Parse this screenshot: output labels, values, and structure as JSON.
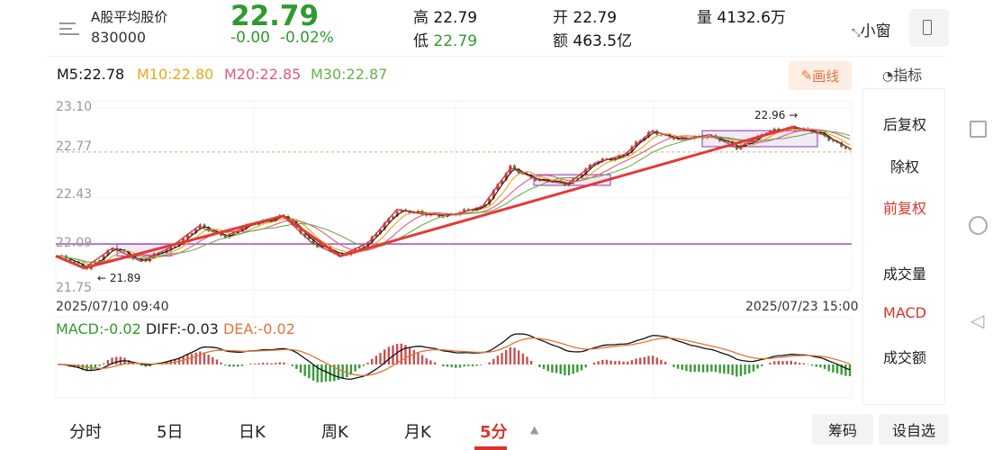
{
  "header": {
    "name": "A股平均股价",
    "code": "830000",
    "price": "22.79",
    "change": "-0.00",
    "change_pct": "-0.02%",
    "high_label": "高",
    "high": "22.79",
    "low_label": "低",
    "low": "22.79",
    "open_label": "开",
    "open": "22.79",
    "amount_label": "额",
    "amount": "463.5亿",
    "volume_label": "量",
    "volume": "4132.6万",
    "mini_window": "小窗",
    "icons": [
      "menu-icon",
      "shrink-icon",
      "phone-icon"
    ]
  },
  "ma_legend": {
    "m5": "M5:22.78",
    "m10": "M10:22.80",
    "m20": "M20:22.85",
    "m30": "M30:22.87"
  },
  "toolbar": {
    "draw": "画线",
    "indicator": "指标"
  },
  "side_menu": [
    {
      "label": "后复权",
      "active": false
    },
    {
      "label": "除权",
      "active": false
    },
    {
      "label": "前复权",
      "active": true
    },
    {
      "label": "成交量",
      "active": false
    },
    {
      "label": "MACD",
      "active": true
    },
    {
      "label": "成交额",
      "active": false
    }
  ],
  "macd_legend": {
    "macd": "MACD:-0.02",
    "diff": "DIFF:-0.03",
    "dea": "DEA:-0.02"
  },
  "tabs": [
    {
      "label": "分时"
    },
    {
      "label": "5日"
    },
    {
      "label": "日K"
    },
    {
      "label": "周K"
    },
    {
      "label": "月K"
    },
    {
      "label": "5分",
      "active": true
    }
  ],
  "buttons": {
    "chips": "筹码",
    "watchlist": "设自选"
  },
  "colors": {
    "up": "#e53935",
    "down": "#2f9a2f",
    "accent": "#e0743a",
    "m5": "#111111",
    "m10": "#e8a71c",
    "m20": "#e05a7a",
    "m30": "#6ab04c"
  },
  "chart_data": {
    "type": "candlestick",
    "y_ticks": [
      "23.10",
      "22.77",
      "22.43",
      "22.09",
      "21.75"
    ],
    "ylim": [
      21.75,
      23.1
    ],
    "x_start": "2025/07/10 09:40",
    "x_end": "2025/07/23 15:00",
    "interval": "5分",
    "close_path": [
      21.99,
      21.9,
      22.05,
      21.95,
      22.05,
      22.21,
      22.14,
      22.24,
      22.29,
      22.09,
      21.99,
      22.09,
      22.34,
      22.3,
      22.3,
      22.36,
      22.65,
      22.56,
      22.53,
      22.69,
      22.75,
      22.93,
      22.86,
      22.9,
      22.8,
      22.91,
      22.96,
      22.9,
      22.79
    ],
    "annotations": {
      "low": "21.89",
      "high": "22.96",
      "reference_line": 22.77,
      "support_line": 22.08
    }
  }
}
